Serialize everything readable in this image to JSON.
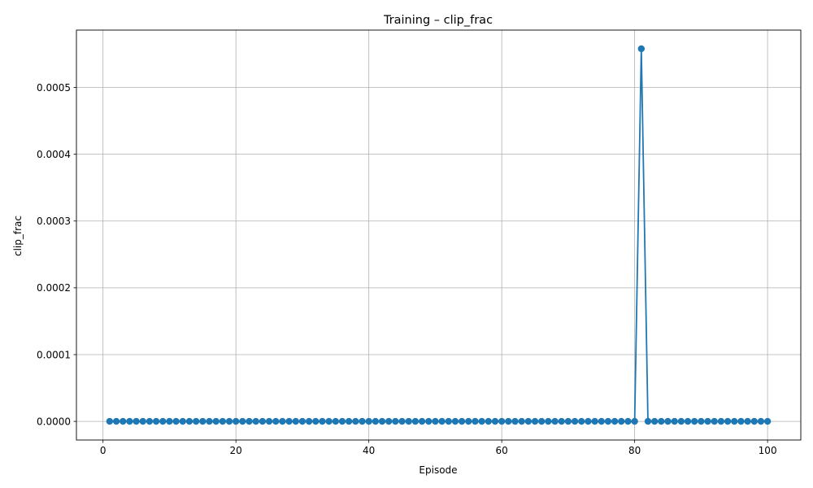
{
  "chart_data": {
    "type": "line",
    "title": "Training – clip_frac",
    "xlabel": "Episode",
    "ylabel": "clip_frac",
    "xlim": [
      -4,
      105
    ],
    "ylim": [
      -2.79e-05,
      0.0005859
    ],
    "xticks": [
      0,
      20,
      40,
      60,
      80,
      100
    ],
    "xtick_labels": [
      "0",
      "20",
      "40",
      "60",
      "80",
      "100"
    ],
    "yticks": [
      0,
      0.0001,
      0.0002,
      0.0003,
      0.0004,
      0.0005
    ],
    "ytick_labels": [
      "0.0000",
      "0.0001",
      "0.0002",
      "0.0003",
      "0.0004",
      "0.0005"
    ],
    "grid": true,
    "marker": "circle",
    "colors": {
      "series": "#1f77b4",
      "grid": "#b0b0b0",
      "axis": "#000000"
    },
    "x": [
      1,
      2,
      3,
      4,
      5,
      6,
      7,
      8,
      9,
      10,
      11,
      12,
      13,
      14,
      15,
      16,
      17,
      18,
      19,
      20,
      21,
      22,
      23,
      24,
      25,
      26,
      27,
      28,
      29,
      30,
      31,
      32,
      33,
      34,
      35,
      36,
      37,
      38,
      39,
      40,
      41,
      42,
      43,
      44,
      45,
      46,
      47,
      48,
      49,
      50,
      51,
      52,
      53,
      54,
      55,
      56,
      57,
      58,
      59,
      60,
      61,
      62,
      63,
      64,
      65,
      66,
      67,
      68,
      69,
      70,
      71,
      72,
      73,
      74,
      75,
      76,
      77,
      78,
      79,
      80,
      81,
      82,
      83,
      84,
      85,
      86,
      87,
      88,
      89,
      90,
      91,
      92,
      93,
      94,
      95,
      96,
      97,
      98,
      99,
      100
    ],
    "y": [
      0,
      0,
      0,
      0,
      0,
      0,
      0,
      0,
      0,
      0,
      0,
      0,
      0,
      0,
      0,
      0,
      0,
      0,
      0,
      0,
      0,
      0,
      0,
      0,
      0,
      0,
      0,
      0,
      0,
      0,
      0,
      0,
      0,
      0,
      0,
      0,
      0,
      0,
      0,
      0,
      0,
      0,
      0,
      0,
      0,
      0,
      0,
      0,
      0,
      0,
      0,
      0,
      0,
      0,
      0,
      0,
      0,
      0,
      0,
      0,
      0,
      0,
      0,
      0,
      0,
      0,
      0,
      0,
      0,
      0,
      0,
      0,
      0,
      0,
      0,
      0,
      0,
      0,
      0,
      0,
      0.000558,
      0,
      0,
      0,
      0,
      0,
      0,
      0,
      0,
      0,
      0,
      0,
      0,
      0,
      0,
      0,
      0,
      0,
      0,
      0
    ]
  }
}
